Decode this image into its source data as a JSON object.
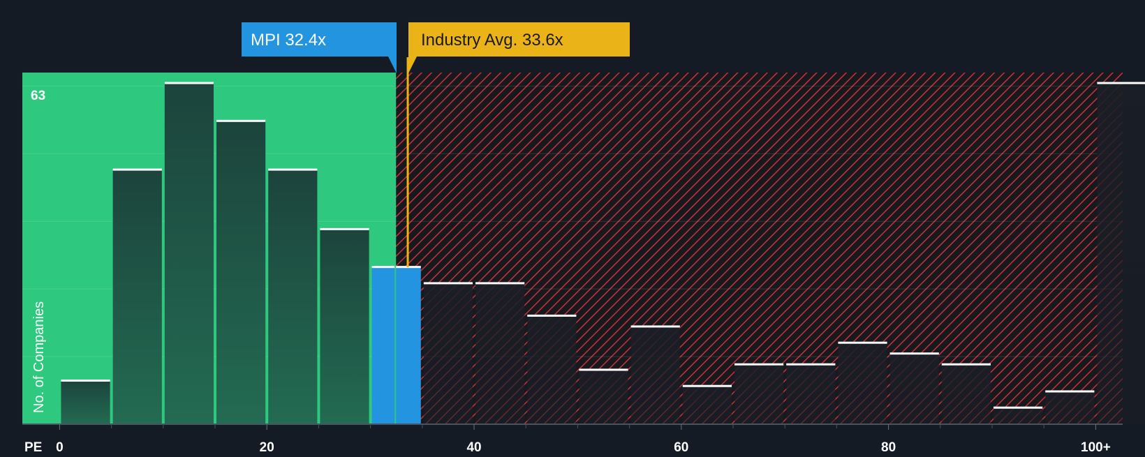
{
  "chart_data": {
    "type": "bar",
    "title": "",
    "xlabel": "PE",
    "ylabel": "No. of Companies",
    "ylim": [
      0,
      65
    ],
    "xlim": [
      -3.6,
      102.6
    ],
    "bin_width": 5,
    "x_ticks": [
      {
        "value": 0,
        "label": "0"
      },
      {
        "value": 20,
        "label": "20"
      },
      {
        "value": 40,
        "label": "40"
      },
      {
        "value": 60,
        "label": "60"
      },
      {
        "value": 80,
        "label": "80"
      },
      {
        "value": 100,
        "label": "100+"
      }
    ],
    "y_max_label": "63",
    "bins": [
      {
        "start": 0,
        "value": 8
      },
      {
        "start": 5,
        "value": 47
      },
      {
        "start": 10,
        "value": 63
      },
      {
        "start": 15,
        "value": 56
      },
      {
        "start": 20,
        "value": 47
      },
      {
        "start": 25,
        "value": 36
      },
      {
        "start": 30,
        "value": 29,
        "highlight": true
      },
      {
        "start": 35,
        "value": 26
      },
      {
        "start": 40,
        "value": 26
      },
      {
        "start": 45,
        "value": 20
      },
      {
        "start": 50,
        "value": 10
      },
      {
        "start": 55,
        "value": 18
      },
      {
        "start": 60,
        "value": 7
      },
      {
        "start": 65,
        "value": 11
      },
      {
        "start": 70,
        "value": 11
      },
      {
        "start": 75,
        "value": 15
      },
      {
        "start": 80,
        "value": 13
      },
      {
        "start": 85,
        "value": 11
      },
      {
        "start": 90,
        "value": 3
      },
      {
        "start": 95,
        "value": 6
      },
      {
        "start": 100,
        "value": 63
      }
    ],
    "company": {
      "label": "MPI 32.4x",
      "value": 32.4
    },
    "industry_avg": {
      "label": "Industry Avg. 33.6x",
      "value": 33.6
    }
  },
  "colors": {
    "background": "#151b24",
    "undervalued": "#2ec97e",
    "bar_fill": "#1f4a3f",
    "highlight_bar": "#2394e0",
    "hatch": "#c8323a",
    "company_label": "#2394e0",
    "industry_label": "#eab317",
    "axis_text": "#ffffff"
  }
}
